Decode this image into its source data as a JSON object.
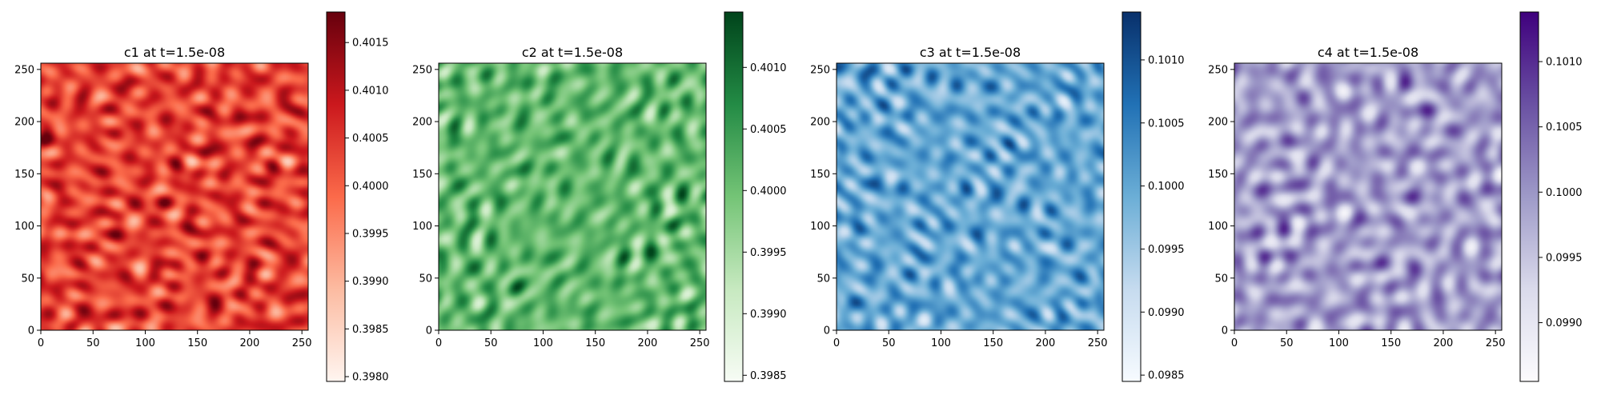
{
  "figure": {
    "background": "#ffffff"
  },
  "chart_data": [
    {
      "type": "heatmap",
      "title": "c1 at t=1.5e-08",
      "xlabel": "",
      "ylabel": "",
      "xlim": [
        0,
        256
      ],
      "ylim": [
        0,
        256
      ],
      "xticks": [
        "0",
        "50",
        "100",
        "150",
        "200",
        "250"
      ],
      "yticks": [
        "0",
        "50",
        "100",
        "150",
        "200",
        "250"
      ],
      "grid": false,
      "colormap": "Reds",
      "colors": [
        "#fff5f0",
        "#fcbba1",
        "#fb6a4a",
        "#cb181d",
        "#67000d"
      ],
      "clim": [
        0.39795,
        0.40182
      ],
      "colorbar_ticks": [
        "0.3980",
        "0.3985",
        "0.3990",
        "0.3995",
        "0.4000",
        "0.4005",
        "0.4010",
        "0.4015"
      ],
      "mean_level": 0.62,
      "seed": 11
    },
    {
      "type": "heatmap",
      "title": "c2 at t=1.5e-08",
      "xlabel": "",
      "ylabel": "",
      "xlim": [
        0,
        256
      ],
      "ylim": [
        0,
        256
      ],
      "xticks": [
        "0",
        "50",
        "100",
        "150",
        "200",
        "250"
      ],
      "yticks": [
        "0",
        "50",
        "100",
        "150",
        "200",
        "250"
      ],
      "grid": false,
      "colormap": "Greens",
      "colors": [
        "#f7fcf5",
        "#c7e9c0",
        "#74c476",
        "#238b45",
        "#00441b"
      ],
      "clim": [
        0.39845,
        0.40145
      ],
      "colorbar_ticks": [
        "0.3985",
        "0.3990",
        "0.3995",
        "0.4000",
        "0.4005",
        "0.4010"
      ],
      "mean_level": 0.55,
      "seed": 23
    },
    {
      "type": "heatmap",
      "title": "c3 at t=1.5e-08",
      "xlabel": "",
      "ylabel": "",
      "xlim": [
        0,
        256
      ],
      "ylim": [
        0,
        256
      ],
      "xticks": [
        "0",
        "50",
        "100",
        "150",
        "200",
        "250"
      ],
      "yticks": [
        "0",
        "50",
        "100",
        "150",
        "200",
        "250"
      ],
      "grid": false,
      "colormap": "Blues",
      "colors": [
        "#f7fbff",
        "#c6dbef",
        "#6baed6",
        "#2171b5",
        "#08306b"
      ],
      "clim": [
        0.09845,
        0.10138
      ],
      "colorbar_ticks": [
        "0.0985",
        "0.0990",
        "0.0995",
        "0.1000",
        "0.1005",
        "0.1010"
      ],
      "mean_level": 0.52,
      "seed": 37
    },
    {
      "type": "heatmap",
      "title": "c4 at t=1.5e-08",
      "xlabel": "",
      "ylabel": "",
      "xlim": [
        0,
        256
      ],
      "ylim": [
        0,
        256
      ],
      "xticks": [
        "0",
        "50",
        "100",
        "150",
        "200",
        "250"
      ],
      "yticks": [
        "0",
        "50",
        "100",
        "150",
        "200",
        "250"
      ],
      "grid": false,
      "colormap": "Purples",
      "colors": [
        "#fcfbfd",
        "#dadaeb",
        "#9e9ac8",
        "#6a51a3",
        "#3f007d"
      ],
      "clim": [
        0.09855,
        0.10138
      ],
      "colorbar_ticks": [
        "0.0990",
        "0.0995",
        "0.1000",
        "0.1005",
        "0.1010"
      ],
      "mean_level": 0.48,
      "seed": 53
    }
  ]
}
